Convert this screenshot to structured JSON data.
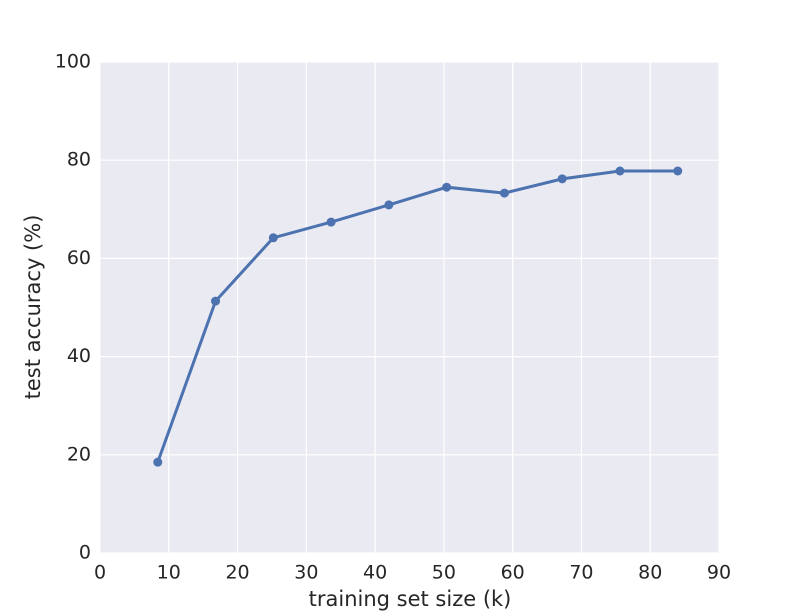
{
  "chart_data": {
    "type": "line",
    "x_label": "training set size (k)",
    "y_label": "test accuracy (%)",
    "series": [
      {
        "color": "#4c72b0",
        "x": [
          8.4,
          16.8,
          25.2,
          33.6,
          42,
          50.4,
          58.8,
          67.2,
          75.6,
          84
        ],
        "values": [
          18.5,
          51.3,
          64.2,
          67.4,
          70.9,
          74.5,
          73.3,
          76.2,
          77.8,
          77.8
        ]
      }
    ],
    "xlim": [
      0,
      90
    ],
    "xticks": [
      0,
      10,
      20,
      30,
      40,
      50,
      60,
      70,
      80,
      90
    ],
    "ylim": [
      0,
      100
    ],
    "yticks": [
      0,
      20,
      40,
      60,
      80,
      100
    ],
    "grid": true,
    "background": "#eaeaf2"
  }
}
